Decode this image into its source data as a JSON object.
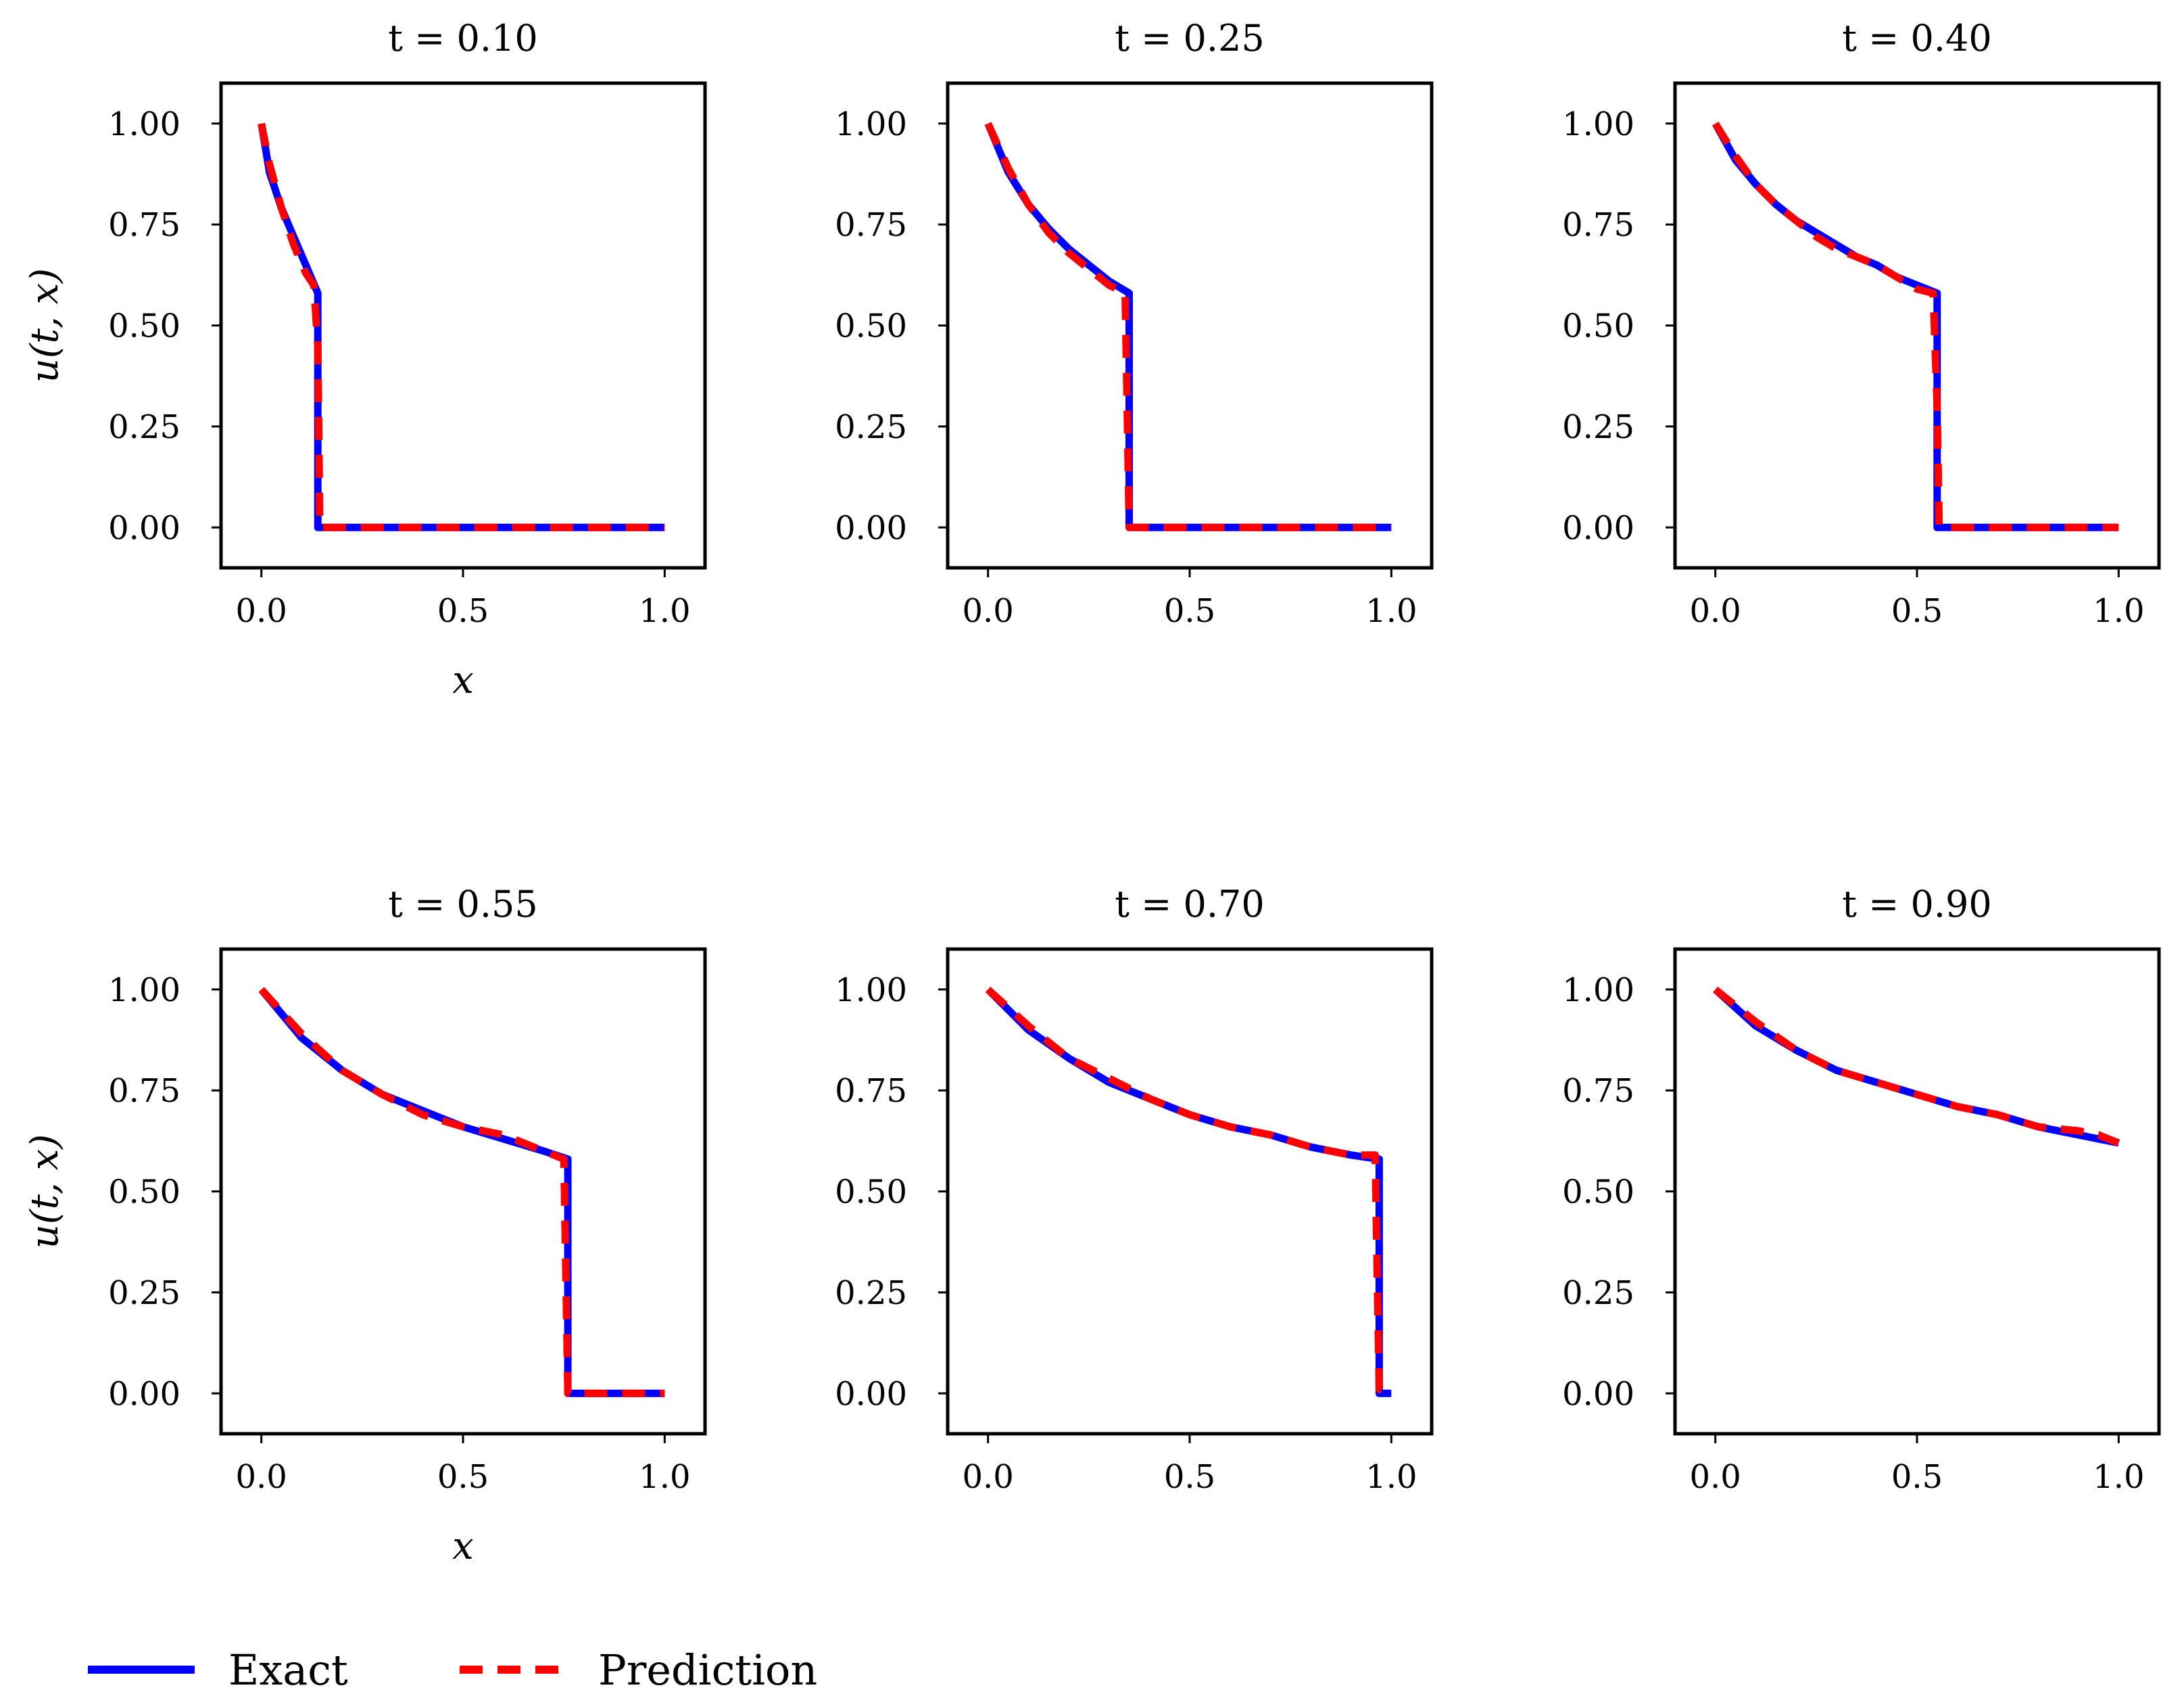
{
  "chart_data": {
    "type": "line",
    "series_names": [
      "Exact",
      "Prediction"
    ],
    "colors": {
      "exact": "#0000ff",
      "prediction": "#ff0000",
      "axes": "#000000"
    },
    "legend": {
      "entries": [
        "Exact",
        "Prediction"
      ],
      "placement": "bottom-left"
    },
    "xlim": [
      -0.1,
      1.1
    ],
    "ylim": [
      -0.1,
      1.1
    ],
    "xticks": [
      0.0,
      0.5,
      1.0
    ],
    "xtick_labels": [
      "0.0",
      "0.5",
      "1.0"
    ],
    "yticks": [
      0.0,
      0.25,
      0.5,
      0.75,
      1.0
    ],
    "ytick_labels": [
      "0.00",
      "0.25",
      "0.50",
      "0.75",
      "1.00"
    ],
    "xlabel": "x",
    "ylabel": "u(t, x)",
    "panels": [
      {
        "title": "t = 0.10",
        "shock_x": 0.14,
        "show_xlabel": true,
        "show_ylabel": true,
        "exact": [
          [
            0.0,
            1.0
          ],
          [
            0.02,
            0.88
          ],
          [
            0.05,
            0.79
          ],
          [
            0.08,
            0.72
          ],
          [
            0.11,
            0.65
          ],
          [
            0.14,
            0.58
          ],
          [
            0.14,
            0.0
          ],
          [
            1.0,
            0.0
          ]
        ],
        "prediction": [
          [
            0.0,
            1.0
          ],
          [
            0.02,
            0.9
          ],
          [
            0.05,
            0.79
          ],
          [
            0.08,
            0.7
          ],
          [
            0.11,
            0.63
          ],
          [
            0.13,
            0.6
          ],
          [
            0.14,
            0.45
          ],
          [
            0.145,
            0.0
          ],
          [
            1.0,
            0.0
          ]
        ]
      },
      {
        "title": "t = 0.25",
        "shock_x": 0.35,
        "show_xlabel": false,
        "show_ylabel": false,
        "exact": [
          [
            0.0,
            1.0
          ],
          [
            0.05,
            0.88
          ],
          [
            0.1,
            0.8
          ],
          [
            0.15,
            0.74
          ],
          [
            0.2,
            0.69
          ],
          [
            0.25,
            0.65
          ],
          [
            0.3,
            0.61
          ],
          [
            0.35,
            0.58
          ],
          [
            0.35,
            0.0
          ],
          [
            1.0,
            0.0
          ]
        ],
        "prediction": [
          [
            0.0,
            1.0
          ],
          [
            0.05,
            0.89
          ],
          [
            0.1,
            0.8
          ],
          [
            0.15,
            0.73
          ],
          [
            0.2,
            0.68
          ],
          [
            0.25,
            0.64
          ],
          [
            0.3,
            0.6
          ],
          [
            0.34,
            0.58
          ],
          [
            0.345,
            0.3
          ],
          [
            0.35,
            0.0
          ],
          [
            1.0,
            0.0
          ]
        ]
      },
      {
        "title": "t = 0.40",
        "shock_x": 0.55,
        "show_xlabel": false,
        "show_ylabel": false,
        "exact": [
          [
            0.0,
            1.0
          ],
          [
            0.05,
            0.91
          ],
          [
            0.1,
            0.85
          ],
          [
            0.15,
            0.8
          ],
          [
            0.2,
            0.76
          ],
          [
            0.25,
            0.73
          ],
          [
            0.3,
            0.7
          ],
          [
            0.35,
            0.67
          ],
          [
            0.4,
            0.65
          ],
          [
            0.45,
            0.62
          ],
          [
            0.5,
            0.6
          ],
          [
            0.55,
            0.58
          ],
          [
            0.55,
            0.0
          ],
          [
            1.0,
            0.0
          ]
        ],
        "prediction": [
          [
            0.0,
            1.0
          ],
          [
            0.05,
            0.92
          ],
          [
            0.1,
            0.85
          ],
          [
            0.15,
            0.8
          ],
          [
            0.2,
            0.76
          ],
          [
            0.25,
            0.72
          ],
          [
            0.3,
            0.69
          ],
          [
            0.35,
            0.67
          ],
          [
            0.4,
            0.65
          ],
          [
            0.45,
            0.62
          ],
          [
            0.5,
            0.59
          ],
          [
            0.54,
            0.58
          ],
          [
            0.55,
            0.3
          ],
          [
            0.555,
            0.0
          ],
          [
            1.0,
            0.0
          ]
        ]
      },
      {
        "title": "t = 0.55",
        "shock_x": 0.76,
        "show_xlabel": true,
        "show_ylabel": true,
        "exact": [
          [
            0.0,
            1.0
          ],
          [
            0.1,
            0.88
          ],
          [
            0.2,
            0.8
          ],
          [
            0.3,
            0.74
          ],
          [
            0.4,
            0.7
          ],
          [
            0.5,
            0.66
          ],
          [
            0.6,
            0.63
          ],
          [
            0.7,
            0.6
          ],
          [
            0.76,
            0.58
          ],
          [
            0.76,
            0.0
          ],
          [
            1.0,
            0.0
          ]
        ],
        "prediction": [
          [
            0.0,
            1.0
          ],
          [
            0.1,
            0.89
          ],
          [
            0.2,
            0.8
          ],
          [
            0.3,
            0.74
          ],
          [
            0.4,
            0.69
          ],
          [
            0.5,
            0.66
          ],
          [
            0.6,
            0.64
          ],
          [
            0.7,
            0.6
          ],
          [
            0.75,
            0.58
          ],
          [
            0.755,
            0.3
          ],
          [
            0.76,
            0.0
          ],
          [
            1.0,
            0.0
          ]
        ]
      },
      {
        "title": "t = 0.70",
        "shock_x": 0.97,
        "show_xlabel": false,
        "show_ylabel": false,
        "exact": [
          [
            0.0,
            1.0
          ],
          [
            0.1,
            0.9
          ],
          [
            0.2,
            0.83
          ],
          [
            0.3,
            0.77
          ],
          [
            0.4,
            0.73
          ],
          [
            0.5,
            0.69
          ],
          [
            0.6,
            0.66
          ],
          [
            0.7,
            0.64
          ],
          [
            0.8,
            0.61
          ],
          [
            0.9,
            0.59
          ],
          [
            0.97,
            0.58
          ],
          [
            0.97,
            0.0
          ],
          [
            1.0,
            0.0
          ]
        ],
        "prediction": [
          [
            0.0,
            1.0
          ],
          [
            0.1,
            0.91
          ],
          [
            0.2,
            0.83
          ],
          [
            0.3,
            0.78
          ],
          [
            0.4,
            0.73
          ],
          [
            0.5,
            0.69
          ],
          [
            0.6,
            0.66
          ],
          [
            0.7,
            0.64
          ],
          [
            0.8,
            0.61
          ],
          [
            0.9,
            0.59
          ],
          [
            0.96,
            0.59
          ],
          [
            0.965,
            0.3
          ],
          [
            0.97,
            0.01
          ],
          [
            1.0,
            0.01
          ]
        ]
      },
      {
        "title": "t = 0.90",
        "shock_x": null,
        "show_xlabel": false,
        "show_ylabel": false,
        "exact": [
          [
            0.0,
            1.0
          ],
          [
            0.1,
            0.91
          ],
          [
            0.2,
            0.85
          ],
          [
            0.3,
            0.8
          ],
          [
            0.4,
            0.77
          ],
          [
            0.5,
            0.74
          ],
          [
            0.6,
            0.71
          ],
          [
            0.7,
            0.69
          ],
          [
            0.8,
            0.66
          ],
          [
            0.9,
            0.64
          ],
          [
            1.0,
            0.62
          ]
        ],
        "prediction": [
          [
            0.0,
            1.0
          ],
          [
            0.1,
            0.92
          ],
          [
            0.2,
            0.85
          ],
          [
            0.3,
            0.8
          ],
          [
            0.4,
            0.77
          ],
          [
            0.5,
            0.74
          ],
          [
            0.6,
            0.71
          ],
          [
            0.7,
            0.69
          ],
          [
            0.8,
            0.66
          ],
          [
            0.9,
            0.65
          ],
          [
            0.95,
            0.64
          ],
          [
            1.0,
            0.62
          ]
        ]
      }
    ]
  }
}
